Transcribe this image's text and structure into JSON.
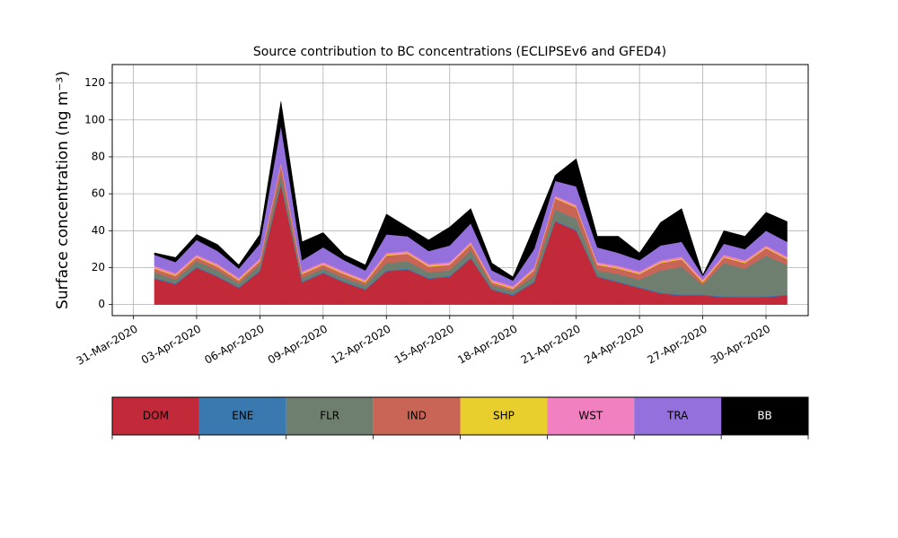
{
  "chart_data": {
    "type": "stacked_area",
    "title": "Source contribution to BC concentrations (ECLIPSEv6 and GFED4)",
    "y_label": "Surface concentration (ng m⁻³)",
    "x": [
      "2020-04-01",
      "2020-04-02",
      "2020-04-03",
      "2020-04-04",
      "2020-04-05",
      "2020-04-06",
      "2020-04-07",
      "2020-04-08",
      "2020-04-09",
      "2020-04-10",
      "2020-04-11",
      "2020-04-12",
      "2020-04-13",
      "2020-04-14",
      "2020-04-15",
      "2020-04-16",
      "2020-04-17",
      "2020-04-18",
      "2020-04-19",
      "2020-04-20",
      "2020-04-21",
      "2020-04-22",
      "2020-04-23",
      "2020-04-24",
      "2020-04-25",
      "2020-04-26",
      "2020-04-27",
      "2020-04-28",
      "2020-04-29",
      "2020-04-30",
      "2020-05-01"
    ],
    "series": [
      {
        "name": "DOM",
        "color": "#c22a3a",
        "values": [
          14,
          11,
          20,
          15,
          9,
          18,
          65,
          12,
          17,
          12,
          8,
          18,
          19,
          14,
          15,
          25,
          8,
          5,
          12,
          45,
          40,
          15,
          12,
          9,
          6,
          5,
          5,
          4,
          4,
          4,
          5
        ]
      },
      {
        "name": "ENE",
        "color": "#3979b0",
        "values": [
          0.5,
          0.5,
          0.5,
          0.5,
          0.5,
          0.5,
          0.5,
          0.5,
          0.5,
          0.5,
          0.5,
          0.5,
          0.5,
          0.5,
          0.5,
          0.5,
          0.5,
          0.5,
          0.5,
          0.5,
          0.5,
          0.5,
          0.5,
          0.5,
          0.5,
          0.5,
          0.5,
          0.5,
          0.5,
          0.5,
          0.5
        ]
      },
      {
        "name": "FLR",
        "color": "#6e7f70",
        "values": [
          3,
          2,
          3,
          3,
          2,
          3,
          5,
          2,
          2,
          2,
          2,
          4,
          4,
          3,
          3,
          4,
          2,
          2,
          3,
          6,
          6,
          3,
          4,
          4,
          12,
          15,
          5,
          18,
          15,
          22,
          16
        ]
      },
      {
        "name": "IND",
        "color": "#c96556",
        "values": [
          2,
          2,
          2,
          2,
          1.5,
          2,
          5,
          2,
          2,
          2,
          1.5,
          4,
          4,
          3,
          3,
          3,
          1.5,
          1,
          3,
          6,
          6,
          3,
          3,
          3,
          4,
          4,
          1.5,
          3,
          3,
          4,
          3
        ]
      },
      {
        "name": "SHP",
        "color": "#e8cf2d",
        "values": [
          0.5,
          0.5,
          0.5,
          0.5,
          0.5,
          0.5,
          0.5,
          0.5,
          0.5,
          0.5,
          0.5,
          0.5,
          0.5,
          0.5,
          0.5,
          0.5,
          0.5,
          0.5,
          0.5,
          0.5,
          0.5,
          0.5,
          0.5,
          0.5,
          0.5,
          0.5,
          0.5,
          0.5,
          0.5,
          0.5,
          0.5
        ]
      },
      {
        "name": "WST",
        "color": "#f080bf",
        "values": [
          1,
          1,
          1,
          1,
          1,
          1,
          1,
          1,
          1,
          1,
          1,
          1,
          1,
          1,
          1,
          1,
          1,
          1,
          1,
          1,
          1,
          1,
          1,
          1,
          1,
          1,
          1,
          1,
          1,
          1,
          1
        ]
      },
      {
        "name": "TRA",
        "color": "#9370db",
        "values": [
          6,
          6,
          8,
          7,
          5,
          8,
          20,
          6,
          8,
          6,
          5,
          10,
          8,
          7,
          9,
          10,
          5,
          3,
          10,
          8,
          10,
          8,
          7,
          6,
          8,
          8,
          2,
          6,
          6,
          8,
          8
        ]
      },
      {
        "name": "BB",
        "color": "#000000",
        "values": [
          1,
          2.5,
          3,
          3.5,
          2,
          5,
          13,
          10,
          8,
          3,
          3,
          11,
          5,
          6,
          10,
          8,
          4,
          2,
          12,
          3,
          15,
          6,
          9,
          4,
          12.5,
          18,
          0.5,
          7,
          7,
          10,
          11
        ]
      }
    ],
    "xlim": [
      "2020-03-30",
      "2020-05-02"
    ],
    "xticks": [
      {
        "value": "2020-03-31",
        "label": "31-Mar-2020"
      },
      {
        "value": "2020-04-03",
        "label": "03-Apr-2020"
      },
      {
        "value": "2020-04-06",
        "label": "06-Apr-2020"
      },
      {
        "value": "2020-04-09",
        "label": "09-Apr-2020"
      },
      {
        "value": "2020-04-12",
        "label": "12-Apr-2020"
      },
      {
        "value": "2020-04-15",
        "label": "15-Apr-2020"
      },
      {
        "value": "2020-04-18",
        "label": "18-Apr-2020"
      },
      {
        "value": "2020-04-21",
        "label": "21-Apr-2020"
      },
      {
        "value": "2020-04-24",
        "label": "24-Apr-2020"
      },
      {
        "value": "2020-04-27",
        "label": "27-Apr-2020"
      },
      {
        "value": "2020-04-30",
        "label": "30-Apr-2020"
      }
    ],
    "ylim": [
      -6,
      130
    ],
    "yticks": [
      0,
      20,
      40,
      60,
      80,
      100,
      120
    ],
    "grid": true
  }
}
